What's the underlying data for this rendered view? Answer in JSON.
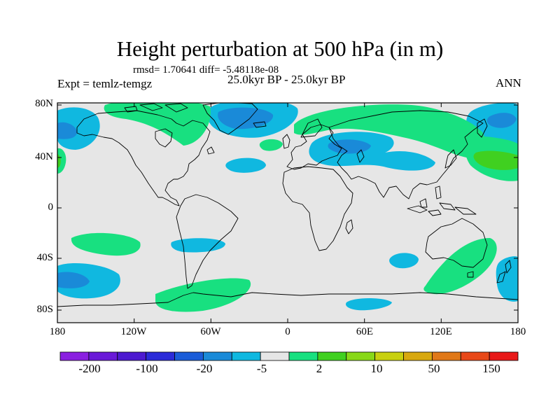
{
  "map": {
    "title": "Height perturbation at 500 hPa (in m)",
    "stats_line": "rmsd= 1.70641 diff= -5.48118e-08",
    "experiment": "Expt = temlz-temgz",
    "period": "25.0kyr BP - 25.0kyr BP",
    "season": "ANN",
    "lon_ticks": [
      "180",
      "120W",
      "60W",
      "0",
      "60E",
      "120E",
      "180"
    ],
    "lat_ticks": [
      "80N",
      "40N",
      "0",
      "40S",
      "80S"
    ],
    "ocean_fill_color": "#e6e6e6",
    "coast_color": "#000000"
  },
  "colorbar": {
    "colors": [
      "#8a1fe0",
      "#6a1ad8",
      "#4d1ad0",
      "#2b2bd8",
      "#1a5cd8",
      "#1a8ad8",
      "#10b8e0",
      "#e6e6e6",
      "#18e080",
      "#40d020",
      "#88d818",
      "#c8d010",
      "#d8a810",
      "#e07818",
      "#e84818",
      "#e81818"
    ],
    "labels": [
      "-200",
      "-100",
      "-20",
      "-5",
      "2",
      "10",
      "50",
      "150"
    ]
  }
}
